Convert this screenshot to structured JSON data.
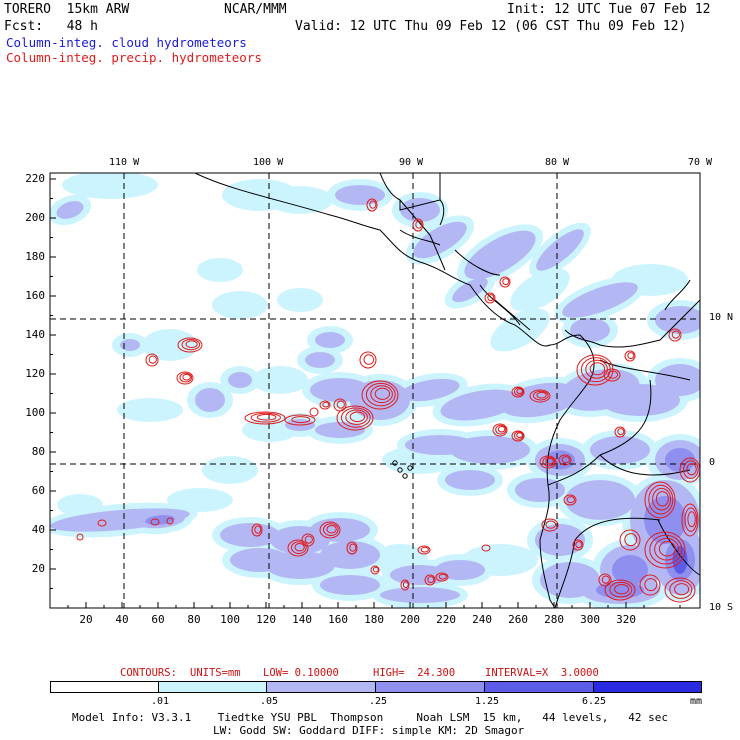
{
  "header": {
    "model": "TORERO  15km ARW",
    "center": "NCAR/MMM",
    "init": "Init: 12 UTC Tue 07 Feb 12",
    "fcst": "Fcst:   48 h",
    "valid": "Valid: 12 UTC Thu 09 Feb 12 (06 CST Thu 09 Feb 12)",
    "field_cloud": "Column-integ. cloud hydrometeors",
    "field_precip": "Column-integ. precip. hydrometeors"
  },
  "colors": {
    "cloud_field": "#1a1ad6",
    "precip_contour": "#e01a1a",
    "shade_levels": [
      "#ffffff",
      "#ccf4ff",
      "#b3b8f5",
      "#8f8ff0",
      "#5c5ce8",
      "#2a2ae0"
    ]
  },
  "map": {
    "lon_labels": [
      "110 W",
      "100 W",
      "90 W",
      "80 W",
      "70 W"
    ],
    "lat_labels": [
      "10 N",
      "0",
      "10 S"
    ],
    "x_ticks": [
      "20",
      "40",
      "60",
      "80",
      "100",
      "120",
      "140",
      "160",
      "180",
      "200",
      "220",
      "240",
      "260",
      "280",
      "300",
      "320"
    ],
    "y_ticks": [
      "20",
      "40",
      "60",
      "80",
      "100",
      "120",
      "140",
      "160",
      "180",
      "200",
      "220"
    ]
  },
  "contours": {
    "label": "CONTOURS:",
    "units": "UNITS=mm",
    "low": "LOW= 0.10000",
    "high": "HIGH=  24.300",
    "interval": "INTERVAL=X  3.0000"
  },
  "colorbar": {
    "labels": [
      ".01",
      ".05",
      ".25",
      "1.25",
      "6.25"
    ],
    "unit": "mm"
  },
  "footer": {
    "line1": "Model Info: V3.3.1    Tiedtke YSU PBL  Thompson     Noah LSM  15 km,   44 levels,   42 sec",
    "line2": "LW: Godd SW: Goddard DIFF: simple KM: 2D Smagor"
  }
}
